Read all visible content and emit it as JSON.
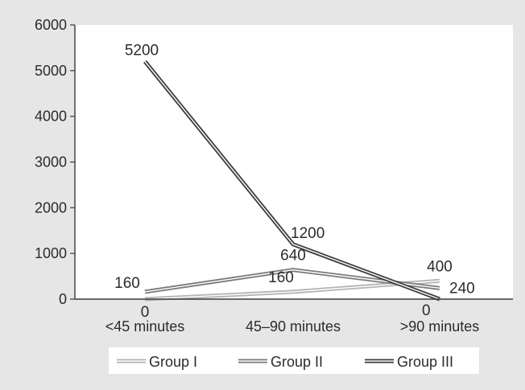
{
  "chart_data": {
    "type": "line",
    "categories": [
      "<45 minutes",
      "45–90 minutes",
      ">90 minutes"
    ],
    "series": [
      {
        "name": "Group I",
        "values": [
          0,
          160,
          400
        ],
        "color": "#b3b3b3"
      },
      {
        "name": "Group II",
        "values": [
          160,
          640,
          240
        ],
        "color": "#7a7a7a"
      },
      {
        "name": "Group III",
        "values": [
          5200,
          1200,
          0
        ],
        "color": "#3d3d3d"
      }
    ],
    "title": "",
    "xlabel": "",
    "ylabel": "",
    "ylim": [
      0,
      6000
    ],
    "yticks": [
      0,
      1000,
      2000,
      3000,
      4000,
      5000,
      6000
    ],
    "grid": false,
    "legend_position": "bottom",
    "colors": {
      "outer_background": "#e6e6e6",
      "plot_background": "#ffffff",
      "axis": "#3a3a3a"
    }
  }
}
